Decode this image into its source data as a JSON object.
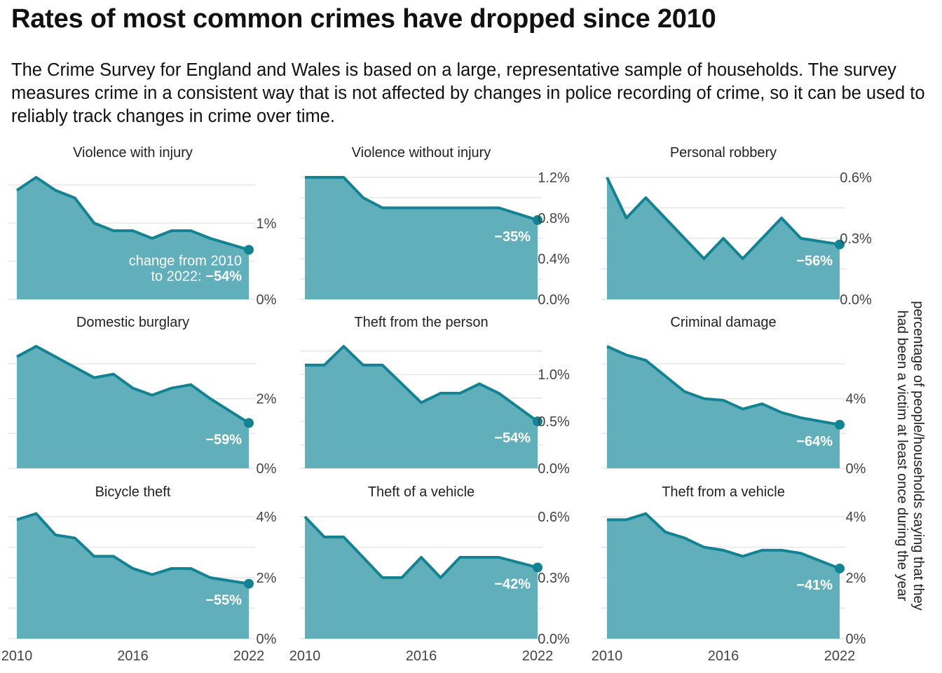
{
  "title": "Rates of most common crimes have dropped since 2010",
  "subtitle": "The Crime Survey for England and Wales is based on a large, representative sample of households. The survey measures crime in a consistent way that is not affected by changes in police recording of crime, so it can be used to reliably track changes in crime over time.",
  "colors": {
    "area": "#62afbc",
    "line": "#138393",
    "grid": "#e6e6e6",
    "axis_text": "#444444",
    "label_text": "#ffffff"
  },
  "chart_data": {
    "type": "area",
    "layout": "small multiples, 3 x 3 grid",
    "x": [
      2010,
      2011,
      2012,
      2013,
      2014,
      2015,
      2016,
      2017,
      2018,
      2019,
      2020,
      2022
    ],
    "x_ticks": [
      "2010",
      "2016",
      "2022"
    ],
    "ylabel": "percentage of people/households saying that they had been a victim at least once during the year",
    "annotation_first": {
      "prefix": "change from 2010",
      "line2": "to 2022: ",
      "value": "−54%"
    },
    "grid": true,
    "panels": [
      {
        "name": "Violence with injury",
        "change": "−54%",
        "ylim": [
          0,
          1.6
        ],
        "y_ticks": [
          0,
          1
        ],
        "y_tick_labels": [
          "0%",
          "1%"
        ],
        "values": [
          1.43,
          1.6,
          1.43,
          1.33,
          1.0,
          0.9,
          0.9,
          0.8,
          0.9,
          0.9,
          0.8,
          0.65
        ]
      },
      {
        "name": "Violence without injury",
        "change": "−35%",
        "ylim": [
          0,
          1.2
        ],
        "y_ticks": [
          0,
          0.4,
          0.8,
          1.2
        ],
        "y_tick_labels": [
          "0.0%",
          "0.4%",
          "0.8%",
          "1.2%"
        ],
        "values": [
          1.2,
          1.2,
          1.2,
          1.0,
          0.9,
          0.9,
          0.9,
          0.9,
          0.9,
          0.9,
          0.9,
          0.78
        ]
      },
      {
        "name": "Personal robbery",
        "change": "−56%",
        "ylim": [
          0,
          0.6
        ],
        "y_ticks": [
          0,
          0.3,
          0.6
        ],
        "y_tick_labels": [
          "0.0%",
          "0.3%",
          "0.6%"
        ],
        "values": [
          0.6,
          0.4,
          0.5,
          0.4,
          0.3,
          0.2,
          0.3,
          0.2,
          0.3,
          0.4,
          0.3,
          0.27
        ]
      },
      {
        "name": "Domestic burglary",
        "change": "−59%",
        "ylim": [
          0,
          3.5
        ],
        "y_ticks": [
          0,
          2
        ],
        "y_tick_labels": [
          "0%",
          "2%"
        ],
        "values": [
          3.2,
          3.5,
          3.2,
          2.9,
          2.6,
          2.7,
          2.3,
          2.1,
          2.3,
          2.4,
          2.0,
          1.3
        ]
      },
      {
        "name": "Theft from the person",
        "change": "−54%",
        "ylim": [
          0,
          1.3
        ],
        "y_ticks": [
          0,
          0.5,
          1.0
        ],
        "y_tick_labels": [
          "0.0%",
          "0.5%",
          "1.0%"
        ],
        "values": [
          1.1,
          1.1,
          1.3,
          1.1,
          1.1,
          0.9,
          0.7,
          0.8,
          0.8,
          0.9,
          0.8,
          0.5
        ]
      },
      {
        "name": "Criminal damage",
        "change": "−64%",
        "ylim": [
          0,
          7
        ],
        "y_ticks": [
          0,
          4
        ],
        "y_tick_labels": [
          "0%",
          "4%"
        ],
        "values": [
          7.0,
          6.5,
          6.2,
          5.3,
          4.4,
          4.0,
          3.9,
          3.4,
          3.7,
          3.2,
          2.9,
          2.5
        ]
      },
      {
        "name": "Bicycle theft",
        "change": "−55%",
        "ylim": [
          0,
          4
        ],
        "y_ticks": [
          0,
          2,
          4
        ],
        "y_tick_labels": [
          "0%",
          "2%",
          "4%"
        ],
        "values": [
          3.9,
          4.1,
          3.4,
          3.3,
          2.7,
          2.7,
          2.3,
          2.1,
          2.3,
          2.3,
          2.0,
          1.8
        ]
      },
      {
        "name": "Theft of a vehicle",
        "change": "−42%",
        "ylim": [
          0,
          0.6
        ],
        "y_ticks": [
          0,
          0.3,
          0.6
        ],
        "y_tick_labels": [
          "0.0%",
          "0.3%",
          "0.6%"
        ],
        "values": [
          0.6,
          0.5,
          0.5,
          0.4,
          0.3,
          0.3,
          0.4,
          0.3,
          0.4,
          0.4,
          0.4,
          0.35
        ]
      },
      {
        "name": "Theft from a vehicle",
        "change": "−41%",
        "ylim": [
          0,
          4
        ],
        "y_ticks": [
          0,
          2,
          4
        ],
        "y_tick_labels": [
          "0%",
          "2%",
          "4%"
        ],
        "values": [
          3.9,
          3.9,
          4.1,
          3.5,
          3.3,
          3.0,
          2.9,
          2.7,
          2.9,
          2.9,
          2.8,
          2.3
        ]
      }
    ]
  }
}
